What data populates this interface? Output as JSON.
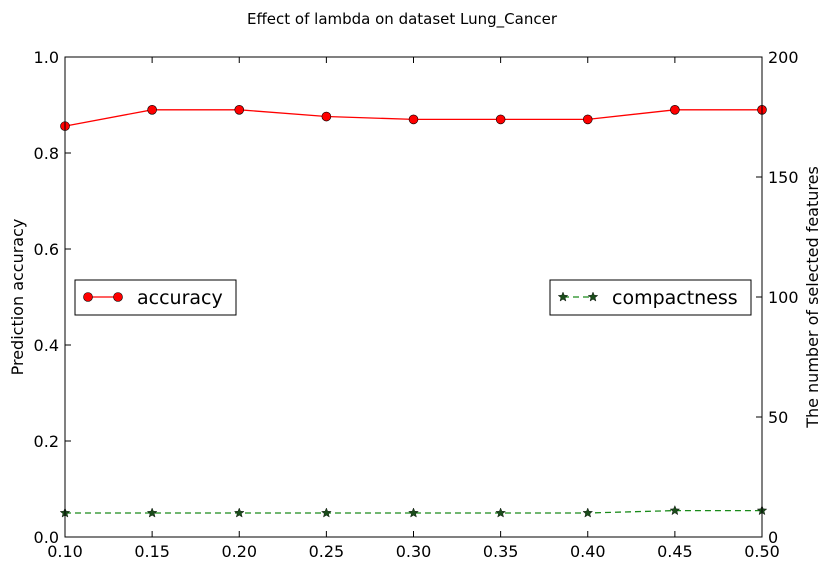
{
  "chart_data": {
    "type": "line",
    "title": "Effect of lambda on dataset Lung_Cancer",
    "xlabel": "",
    "ylabel": "Prediction accuracy",
    "y2label": "The number of selected features",
    "x": [
      0.1,
      0.15,
      0.2,
      0.25,
      0.3,
      0.35,
      0.4,
      0.45,
      0.5
    ],
    "xlim": [
      0.1,
      0.5
    ],
    "xticks": [
      "0.10",
      "0.15",
      "0.20",
      "0.25",
      "0.30",
      "0.35",
      "0.40",
      "0.45",
      "0.50"
    ],
    "ylim": [
      0.0,
      1.0
    ],
    "yticks": [
      "0.0",
      "0.2",
      "0.4",
      "0.6",
      "0.8",
      "1.0"
    ],
    "y2lim": [
      0,
      200
    ],
    "y2ticks": [
      "0",
      "50",
      "100",
      "150",
      "200"
    ],
    "grid": false,
    "series": [
      {
        "name": "accuracy",
        "axis": "left",
        "color": "#ff0000",
        "marker": "circle",
        "linestyle": "solid",
        "legend_position": "center-left",
        "values": [
          0.856,
          0.89,
          0.89,
          0.876,
          0.87,
          0.87,
          0.87,
          0.89,
          0.89
        ]
      },
      {
        "name": "compactness",
        "axis": "right",
        "color": "#1a8a1a",
        "marker": "star",
        "linestyle": "dashed",
        "legend_position": "center-right",
        "values": [
          10,
          10,
          10,
          10,
          10,
          10,
          10,
          11,
          11
        ]
      }
    ]
  }
}
